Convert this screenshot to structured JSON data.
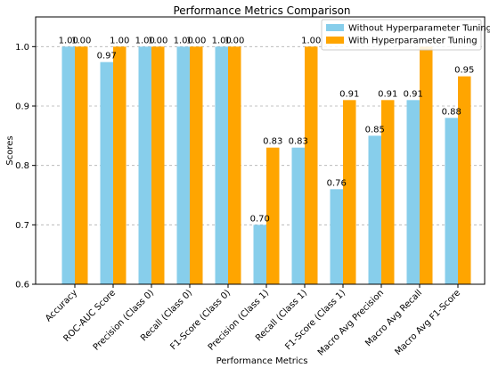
{
  "chart_data": {
    "type": "bar",
    "title": "Performance Metrics Comparison",
    "xlabel": "Performance Metrics",
    "ylabel": "Scores",
    "ylim": [
      0.6,
      1.05
    ],
    "yticks": [
      0.6,
      0.7,
      0.8,
      0.9,
      1.0
    ],
    "ytick_labels": [
      "0.6",
      "0.7",
      "0.8",
      "0.9",
      "1.0"
    ],
    "grid": "horizontal dashed",
    "legend_position": "top-right",
    "categories": [
      "Accuracy",
      "ROC-AUC Score",
      "Precision (Class 0)",
      "Recall (Class 0)",
      "F1-Score (Class 0)",
      "Precision (Class 1)",
      "Recall (Class 1)",
      "F1-Score (Class 1)",
      "Macro Avg Precision",
      "Macro Avg Recall",
      "Macro Avg F1-Score"
    ],
    "series": [
      {
        "name": "Without Hyperparameter Tuning",
        "color": "#87CEEB",
        "values": [
          1.0,
          0.974,
          1.0,
          1.0,
          1.0,
          0.7,
          0.83,
          0.76,
          0.85,
          0.91,
          0.88
        ],
        "labels": [
          "1.00",
          "0.97",
          "1.00",
          "1.00",
          "1.00",
          "0.70",
          "0.83",
          "0.76",
          "0.85",
          "0.91",
          "0.88"
        ]
      },
      {
        "name": "With Hyperparameter Tuning",
        "color": "#FFA500",
        "values": [
          1.0,
          1.0,
          1.0,
          1.0,
          1.0,
          0.83,
          1.0,
          0.91,
          0.91,
          1.0,
          0.95
        ],
        "labels": [
          "1.00",
          "1.00",
          "1.00",
          "1.00",
          "1.00",
          "0.83",
          "1.00",
          "0.91",
          "0.91",
          "",
          "0.95"
        ]
      }
    ]
  }
}
